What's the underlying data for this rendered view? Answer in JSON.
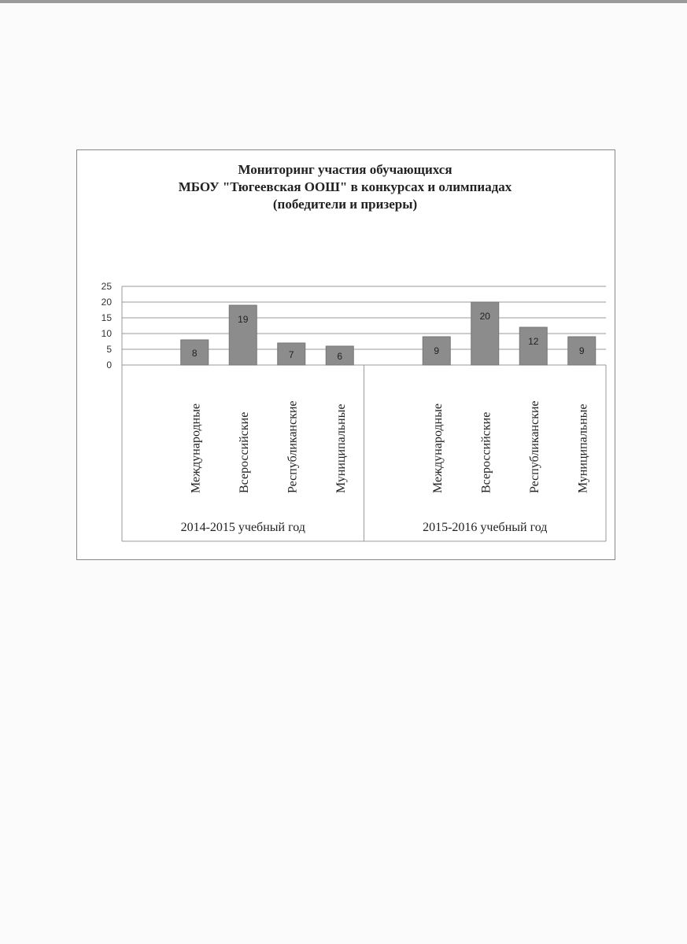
{
  "chart_data": {
    "type": "bar",
    "title": [
      "Мониторинг участия обучающихся",
      "МБОУ \"Тюгеевская ООШ\" в конкурсах и олимпиадах",
      "(победители и призеры)"
    ],
    "groups": [
      {
        "label": "2014-2015 учебный год",
        "categories": [
          "Международные",
          "Всероссийские",
          "Республиканские",
          "Муниципальные"
        ],
        "values": [
          8,
          19,
          7,
          6
        ]
      },
      {
        "label": "2015-2016 учебный год",
        "categories": [
          "Международные",
          "Всероссийские",
          "Республиканские",
          "Муниципальные"
        ],
        "values": [
          9,
          20,
          12,
          9
        ]
      }
    ],
    "yticks": [
      "0",
      "5",
      "10",
      "15",
      "20",
      "25"
    ],
    "ylim": [
      0,
      25
    ],
    "grid": true,
    "legend": "none",
    "bar_color": "#8c8c8c",
    "xlabel": "",
    "ylabel": ""
  }
}
